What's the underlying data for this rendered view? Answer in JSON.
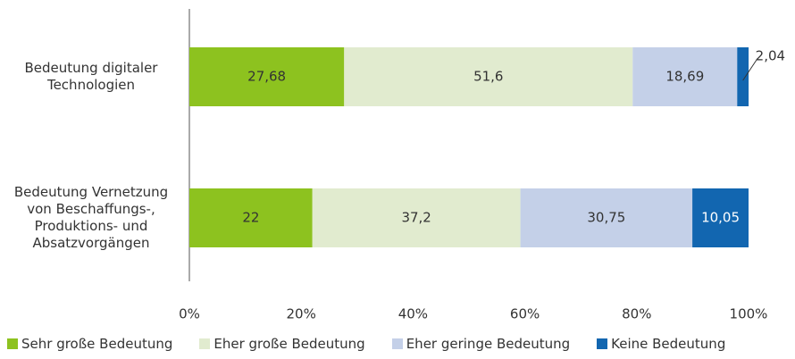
{
  "chart_data": {
    "type": "bar",
    "orientation": "horizontal",
    "stacked": true,
    "categories": [
      "Bedeutung digitaler Technologien",
      "Bedeutung Vernetzung von Beschaffungs-, Produktions- und Absatzvorgängen"
    ],
    "series": [
      {
        "name": "Sehr große Bedeutung",
        "color": "#8dc21f",
        "values": [
          27.68,
          22
        ],
        "value_labels": [
          "27,68",
          "22"
        ]
      },
      {
        "name": "Eher große Bedeutung",
        "color": "#e1ebcf",
        "values": [
          51.6,
          37.2
        ],
        "value_labels": [
          "51,6",
          "37,2"
        ]
      },
      {
        "name": "Eher geringe Bedeutung",
        "color": "#c4d0e8",
        "values": [
          18.69,
          30.75
        ],
        "value_labels": [
          "18,69",
          "30,75"
        ]
      },
      {
        "name": "Keine Bedeutung",
        "color": "#1266b0",
        "values": [
          2.04,
          10.05
        ],
        "value_labels": [
          "2,04",
          "10,05"
        ]
      }
    ],
    "xlim": [
      0,
      100
    ],
    "xticks": [
      {
        "value": 0,
        "label": "0%"
      },
      {
        "value": 20,
        "label": "20%"
      },
      {
        "value": 40,
        "label": "40%"
      },
      {
        "value": 60,
        "label": "60%"
      },
      {
        "value": 80,
        "label": "80%"
      },
      {
        "value": 100,
        "label": "100%"
      }
    ],
    "legend": "bottom"
  }
}
